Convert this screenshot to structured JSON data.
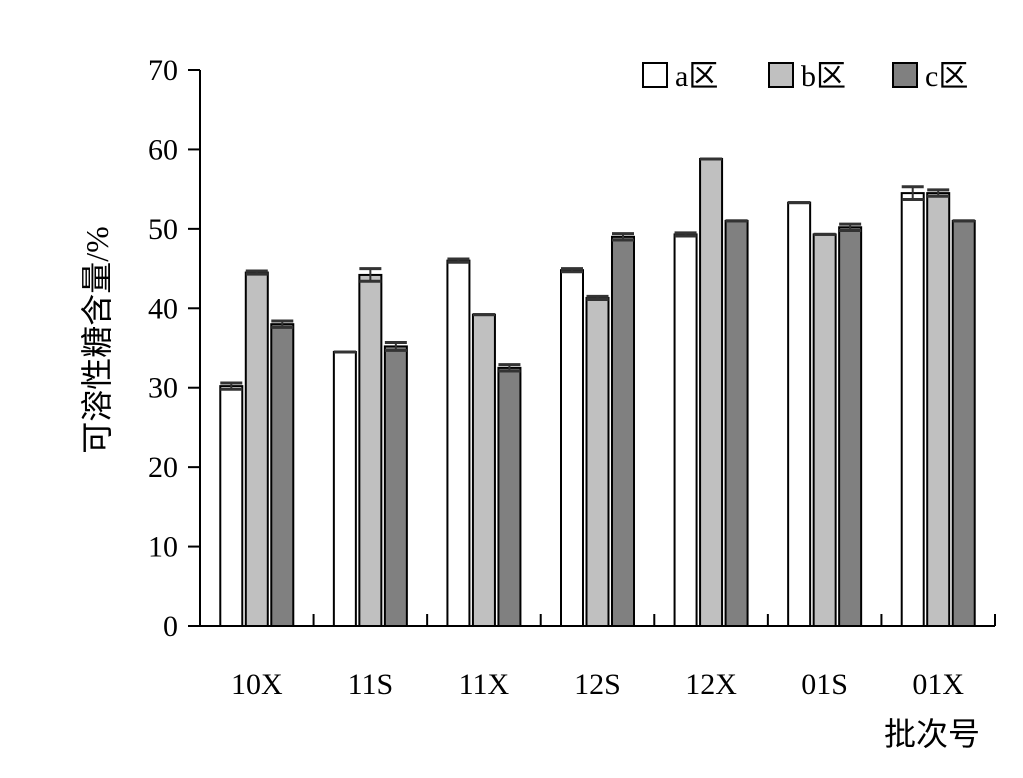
{
  "chart_data": {
    "type": "bar",
    "title": "",
    "xlabel": "批次号",
    "ylabel": "可溶性糖含量/%",
    "ylim": [
      0,
      70
    ],
    "yticks": [
      0,
      10,
      20,
      30,
      40,
      50,
      60,
      70
    ],
    "grid": false,
    "legend_position": "top-right",
    "categories": [
      "10X",
      "11S",
      "11X",
      "12S",
      "12X",
      "01S",
      "01X"
    ],
    "series": [
      {
        "name": "a区",
        "color": "#ffffff",
        "values": [
          30.2,
          34.5,
          46.0,
          44.8,
          49.3,
          53.3,
          54.5
        ],
        "errors": [
          0.4,
          0.0,
          0.2,
          0.2,
          0.2,
          0.0,
          0.8
        ]
      },
      {
        "name": "b区",
        "color": "#c0c0c0",
        "values": [
          44.5,
          44.2,
          39.2,
          41.3,
          58.8,
          49.3,
          54.5
        ],
        "errors": [
          0.2,
          0.8,
          0.0,
          0.2,
          0.0,
          0.0,
          0.4
        ]
      },
      {
        "name": "c区",
        "color": "#808080",
        "values": [
          38.0,
          35.2,
          32.5,
          49.0,
          51.0,
          50.2,
          51.0
        ],
        "errors": [
          0.4,
          0.5,
          0.4,
          0.4,
          0.0,
          0.4,
          0.0
        ]
      }
    ]
  }
}
